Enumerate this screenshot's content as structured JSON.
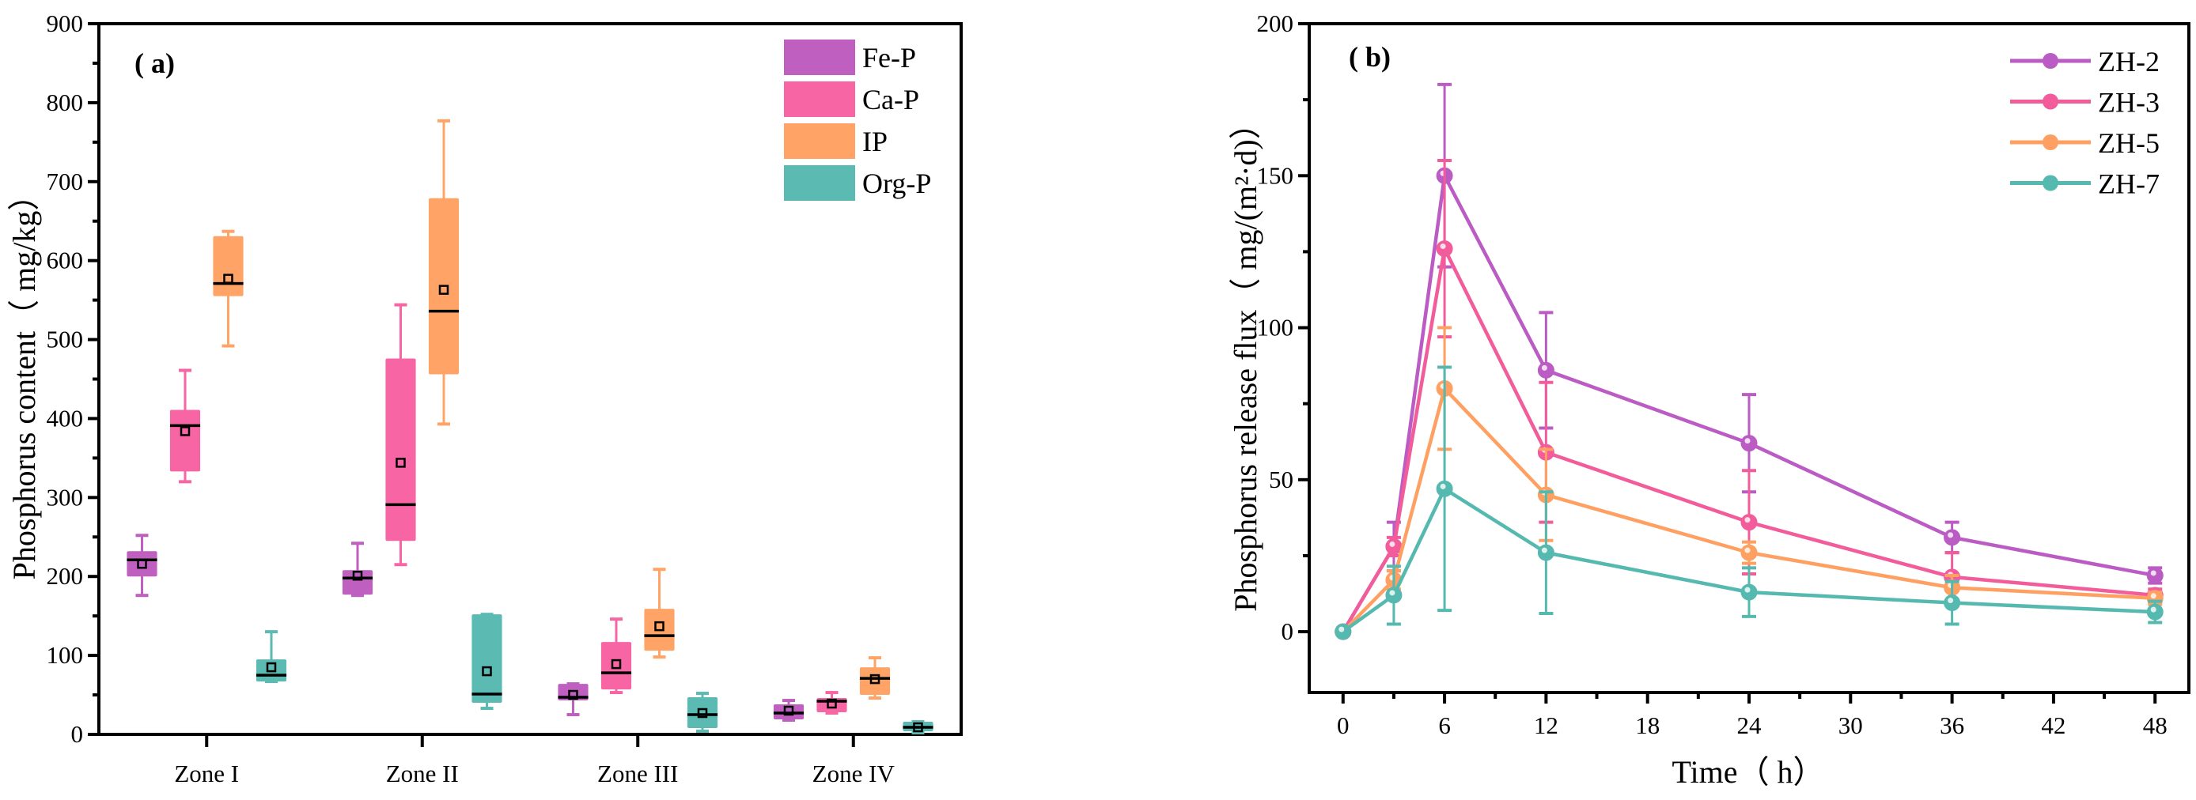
{
  "chart_data": [
    {
      "type": "box",
      "panel_label": "( a)",
      "title": "",
      "xlabel": "",
      "ylabel": "Phosphorus content（ mg/kg）",
      "ylim": [
        0,
        900
      ],
      "yticks": [
        0,
        100,
        200,
        300,
        400,
        500,
        600,
        700,
        800,
        900
      ],
      "categories": [
        "Zone I",
        "Zone II",
        "Zone III",
        "Zone IV"
      ],
      "legend_position": "top-right",
      "series": [
        {
          "name": "Fe-P",
          "color": "#BF5FC0",
          "boxes": [
            {
              "min": 176,
              "q1": 200,
              "median": 221,
              "q3": 232,
              "max": 252,
              "mean": 216
            },
            {
              "min": 176,
              "q1": 177,
              "median": 198,
              "q3": 208,
              "max": 242,
              "mean": 201
            },
            {
              "min": 25,
              "q1": 43,
              "median": 47,
              "q3": 64,
              "max": 64,
              "mean": 50
            },
            {
              "min": 18,
              "q1": 19,
              "median": 27,
              "q3": 38,
              "max": 43,
              "mean": 30
            }
          ]
        },
        {
          "name": "Ca-P",
          "color": "#F765A5",
          "boxes": [
            {
              "min": 320,
              "q1": 333,
              "median": 391,
              "q3": 411,
              "max": 461,
              "mean": 384
            },
            {
              "min": 215,
              "q1": 245,
              "median": 291,
              "q3": 476,
              "max": 544,
              "mean": 344
            },
            {
              "min": 53,
              "q1": 57,
              "median": 78,
              "q3": 117,
              "max": 146,
              "mean": 89
            },
            {
              "min": 27,
              "q1": 28,
              "median": 42,
              "q3": 46,
              "max": 53,
              "mean": 39
            }
          ]
        },
        {
          "name": "IP",
          "color": "#FFA466",
          "boxes": [
            {
              "min": 492,
              "q1": 555,
              "median": 571,
              "q3": 631,
              "max": 637,
              "mean": 577
            },
            {
              "min": 393,
              "q1": 456,
              "median": 536,
              "q3": 679,
              "max": 777,
              "mean": 563
            },
            {
              "min": 98,
              "q1": 106,
              "median": 125,
              "q3": 159,
              "max": 209,
              "mean": 137
            },
            {
              "min": 46,
              "q1": 50,
              "median": 71,
              "q3": 85,
              "max": 97,
              "mean": 70
            }
          ]
        },
        {
          "name": "Org-P",
          "color": "#5BBAB2",
          "boxes": [
            {
              "min": 67,
              "q1": 67,
              "median": 75,
              "q3": 95,
              "max": 130,
              "mean": 85
            },
            {
              "min": 33,
              "q1": 40,
              "median": 51,
              "q3": 152,
              "max": 152,
              "mean": 80
            },
            {
              "min": 4,
              "q1": 8,
              "median": 25,
              "q3": 47,
              "max": 52,
              "mean": 27
            },
            {
              "min": 2,
              "q1": 4,
              "median": 9,
              "q3": 16,
              "max": 16,
              "mean": 9
            }
          ]
        }
      ]
    },
    {
      "type": "line",
      "panel_label": "( b)",
      "title": "",
      "xlabel": "Time（ h）",
      "ylabel": "Phosphorus release flux（ mg/(m²·d)）",
      "xlim": [
        -2,
        50
      ],
      "ylim": [
        -20,
        200
      ],
      "xticks": [
        0,
        6,
        12,
        18,
        24,
        30,
        36,
        42,
        48
      ],
      "yticks": [
        0,
        50,
        100,
        150,
        200
      ],
      "x": [
        0,
        3,
        6,
        12,
        24,
        36,
        48
      ],
      "legend_position": "top-right",
      "series": [
        {
          "name": "ZH-2",
          "color": "#BB5BC4",
          "values": [
            0,
            28,
            150,
            86,
            62,
            31,
            18.5
          ],
          "errors": [
            0,
            8,
            30,
            19,
            16,
            5,
            2.5
          ]
        },
        {
          "name": "ZH-3",
          "color": "#F25C9A",
          "values": [
            0,
            28,
            126,
            59,
            36,
            18,
            12
          ],
          "errors": [
            0,
            3,
            29,
            23,
            17,
            8,
            2
          ]
        },
        {
          "name": "ZH-5",
          "color": "#FFA063",
          "values": [
            0,
            17,
            80,
            45,
            26,
            14.5,
            11
          ],
          "errors": [
            0,
            3,
            20,
            15,
            3.5,
            4,
            2
          ]
        },
        {
          "name": "ZH-7",
          "color": "#55B9AF",
          "values": [
            0,
            12,
            47,
            26,
            13,
            9.5,
            6.5
          ],
          "errors": [
            0,
            9.5,
            40,
            20,
            8,
            7,
            3.5
          ]
        }
      ]
    }
  ]
}
